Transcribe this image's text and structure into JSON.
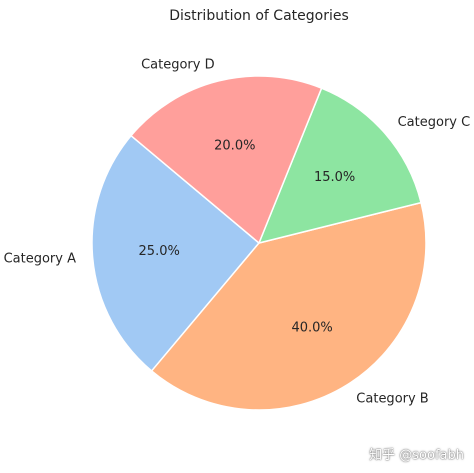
{
  "chart_data": {
    "type": "pie",
    "title": "Distribution of Categories",
    "labels": [
      "Category A",
      "Category B",
      "Category C",
      "Category D"
    ],
    "values": [
      25.0,
      40.0,
      15.0,
      20.0
    ],
    "percent_labels": [
      "25.0%",
      "40.0%",
      "15.0%",
      "20.0%"
    ],
    "colors": [
      "#a1c9f4",
      "#ffb482",
      "#8de5a1",
      "#ff9f9b"
    ],
    "start_angle_deg": 140,
    "direction": "counterclockwise"
  },
  "watermark": "知乎 @soofabh"
}
